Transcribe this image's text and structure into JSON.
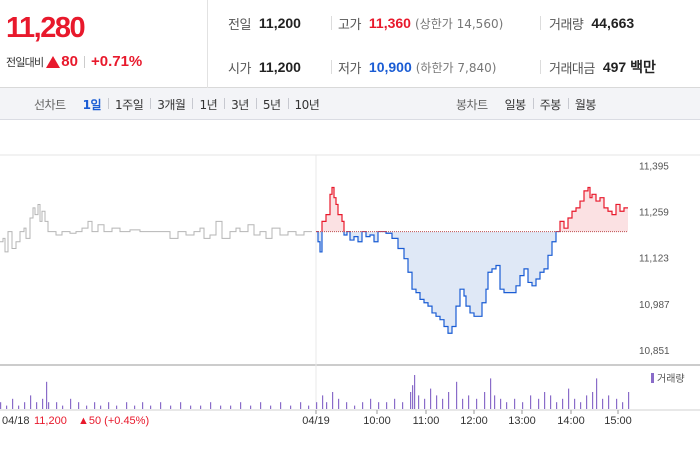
{
  "quote": {
    "price": "11,280",
    "change_label": "전일대비",
    "change_value": "80",
    "change_pct": "+0.71%",
    "prev_close": {
      "label": "전일",
      "value": "11,200"
    },
    "open": {
      "label": "시가",
      "value": "11,200"
    },
    "high": {
      "label": "고가",
      "value": "11,360",
      "sub": "(상한가 14,560)"
    },
    "low": {
      "label": "저가",
      "value": "10,900",
      "sub": "(하한가 7,840)"
    },
    "volume": {
      "label": "거래량",
      "value": "44,663"
    },
    "amount": {
      "label": "거래대금",
      "value": "497 백만"
    }
  },
  "tabs": {
    "line_head": "선차트",
    "line_tabs": [
      "1일",
      "1주일",
      "3개월",
      "1년",
      "3년",
      "5년",
      "10년"
    ],
    "active_line_tab": "1일",
    "candle_head": "봉차트",
    "candle_tabs": [
      "일봉",
      "주봉",
      "월봉"
    ]
  },
  "chart_data": {
    "type": "line",
    "baseline": 11200,
    "ylim": [
      10830,
      11420
    ],
    "y_ticks": [
      "11,395",
      "11,259",
      "11,123",
      "10,987",
      "10,851"
    ],
    "x_ticks": [
      "04/19",
      "10:00",
      "11:00",
      "12:00",
      "13:00",
      "14:00",
      "15:00"
    ],
    "prev_day_label": "04/18",
    "prev_day_price": "11,200",
    "prev_day_change": "▲50 (+0.45%)",
    "legend": "거래량",
    "prev_day_series": [
      [
        0,
        11170
      ],
      [
        3,
        11180
      ],
      [
        5,
        11140
      ],
      [
        8,
        11200
      ],
      [
        12,
        11150
      ],
      [
        16,
        11170
      ],
      [
        20,
        11200
      ],
      [
        24,
        11210
      ],
      [
        26,
        11180
      ],
      [
        30,
        11240
      ],
      [
        33,
        11270
      ],
      [
        35,
        11250
      ],
      [
        38,
        11280
      ],
      [
        40,
        11230
      ],
      [
        42,
        11260
      ],
      [
        45,
        11230
      ],
      [
        48,
        11200
      ],
      [
        52,
        11200
      ],
      [
        56,
        11190
      ],
      [
        62,
        11200
      ],
      [
        70,
        11195
      ],
      [
        76,
        11200
      ],
      [
        82,
        11210
      ],
      [
        88,
        11230
      ],
      [
        92,
        11200
      ],
      [
        98,
        11220
      ],
      [
        104,
        11200
      ],
      [
        112,
        11210
      ],
      [
        120,
        11200
      ],
      [
        130,
        11205
      ],
      [
        140,
        11200
      ],
      [
        150,
        11200
      ],
      [
        160,
        11200
      ],
      [
        170,
        11180
      ],
      [
        178,
        11200
      ],
      [
        186,
        11190
      ],
      [
        194,
        11200
      ],
      [
        200,
        11210
      ],
      [
        204,
        11180
      ],
      [
        210,
        11190
      ],
      [
        216,
        11230
      ],
      [
        222,
        11180
      ],
      [
        230,
        11200
      ],
      [
        236,
        11210
      ],
      [
        240,
        11200
      ],
      [
        248,
        11220
      ],
      [
        254,
        11190
      ],
      [
        260,
        11200
      ],
      [
        266,
        11180
      ],
      [
        272,
        11210
      ],
      [
        280,
        11190
      ],
      [
        288,
        11200
      ],
      [
        296,
        11190
      ],
      [
        304,
        11200
      ],
      [
        312,
        11200
      ]
    ],
    "today_series": [
      [
        0,
        11200
      ],
      [
        2,
        11170
      ],
      [
        4,
        11140
      ],
      [
        6,
        11230
      ],
      [
        10,
        11250
      ],
      [
        14,
        11310
      ],
      [
        16,
        11330
      ],
      [
        18,
        11300
      ],
      [
        20,
        11280
      ],
      [
        22,
        11250
      ],
      [
        26,
        11230
      ],
      [
        28,
        11190
      ],
      [
        31,
        11200
      ],
      [
        34,
        11175
      ],
      [
        38,
        11185
      ],
      [
        42,
        11170
      ],
      [
        46,
        11200
      ],
      [
        50,
        11185
      ],
      [
        54,
        11190
      ],
      [
        58,
        11170
      ],
      [
        62,
        11200
      ],
      [
        70,
        11195
      ],
      [
        76,
        11180
      ],
      [
        82,
        11150
      ],
      [
        88,
        11120
      ],
      [
        92,
        11080
      ],
      [
        96,
        11030
      ],
      [
        100,
        11020
      ],
      [
        104,
        11000
      ],
      [
        108,
        10990
      ],
      [
        112,
        10980
      ],
      [
        116,
        10960
      ],
      [
        120,
        10950
      ],
      [
        124,
        10940
      ],
      [
        128,
        10920
      ],
      [
        132,
        10900
      ],
      [
        136,
        10920
      ],
      [
        140,
        10980
      ],
      [
        144,
        11030
      ],
      [
        148,
        11010
      ],
      [
        150,
        10980
      ],
      [
        154,
        10960
      ],
      [
        158,
        10950
      ],
      [
        162,
        10950
      ],
      [
        166,
        10990
      ],
      [
        170,
        11030
      ],
      [
        172,
        11080
      ],
      [
        176,
        11090
      ],
      [
        180,
        11100
      ],
      [
        184,
        11030
      ],
      [
        188,
        11020
      ],
      [
        192,
        11020
      ],
      [
        196,
        11020
      ],
      [
        200,
        11040
      ],
      [
        204,
        11070
      ],
      [
        208,
        11090
      ],
      [
        212,
        11050
      ],
      [
        216,
        11040
      ],
      [
        220,
        11060
      ],
      [
        224,
        11080
      ],
      [
        228,
        11090
      ],
      [
        232,
        11130
      ],
      [
        236,
        11170
      ],
      [
        240,
        11200
      ],
      [
        244,
        11230
      ],
      [
        248,
        11210
      ],
      [
        252,
        11240
      ],
      [
        256,
        11260
      ],
      [
        260,
        11270
      ],
      [
        264,
        11290
      ],
      [
        268,
        11320
      ],
      [
        272,
        11330
      ],
      [
        274,
        11300
      ],
      [
        276,
        11310
      ],
      [
        280,
        11290
      ],
      [
        284,
        11300
      ],
      [
        288,
        11270
      ],
      [
        292,
        11260
      ],
      [
        296,
        11250
      ],
      [
        300,
        11280
      ],
      [
        304,
        11260
      ],
      [
        308,
        11270
      ],
      [
        312,
        11270
      ]
    ],
    "volume_prev": [
      [
        0,
        2
      ],
      [
        6,
        1
      ],
      [
        12,
        3
      ],
      [
        18,
        1
      ],
      [
        24,
        2
      ],
      [
        30,
        4
      ],
      [
        36,
        2
      ],
      [
        42,
        3
      ],
      [
        46,
        8
      ],
      [
        48,
        2
      ],
      [
        56,
        2
      ],
      [
        62,
        1
      ],
      [
        70,
        3
      ],
      [
        78,
        2
      ],
      [
        86,
        1
      ],
      [
        94,
        2
      ],
      [
        100,
        1
      ],
      [
        108,
        2
      ],
      [
        116,
        1
      ],
      [
        126,
        2
      ],
      [
        134,
        1
      ],
      [
        142,
        2
      ],
      [
        150,
        1
      ],
      [
        160,
        2
      ],
      [
        170,
        1
      ],
      [
        180,
        2
      ],
      [
        190,
        1
      ],
      [
        200,
        1
      ],
      [
        210,
        2
      ],
      [
        220,
        1
      ],
      [
        230,
        1
      ],
      [
        240,
        2
      ],
      [
        250,
        1
      ],
      [
        260,
        2
      ],
      [
        270,
        1
      ],
      [
        280,
        2
      ],
      [
        290,
        1
      ],
      [
        300,
        2
      ],
      [
        308,
        1
      ]
    ],
    "volume_today": [
      [
        0,
        2
      ],
      [
        6,
        4
      ],
      [
        10,
        2
      ],
      [
        16,
        5
      ],
      [
        22,
        3
      ],
      [
        30,
        2
      ],
      [
        38,
        1
      ],
      [
        46,
        2
      ],
      [
        54,
        3
      ],
      [
        62,
        2
      ],
      [
        70,
        2
      ],
      [
        78,
        3
      ],
      [
        86,
        2
      ],
      [
        94,
        5
      ],
      [
        96,
        7
      ],
      [
        98,
        10
      ],
      [
        102,
        4
      ],
      [
        108,
        3
      ],
      [
        114,
        6
      ],
      [
        120,
        4
      ],
      [
        126,
        3
      ],
      [
        132,
        5
      ],
      [
        140,
        8
      ],
      [
        146,
        3
      ],
      [
        152,
        4
      ],
      [
        160,
        3
      ],
      [
        168,
        5
      ],
      [
        174,
        9
      ],
      [
        178,
        4
      ],
      [
        184,
        3
      ],
      [
        190,
        2
      ],
      [
        198,
        3
      ],
      [
        206,
        2
      ],
      [
        214,
        4
      ],
      [
        222,
        3
      ],
      [
        228,
        5
      ],
      [
        234,
        4
      ],
      [
        240,
        2
      ],
      [
        246,
        3
      ],
      [
        252,
        6
      ],
      [
        258,
        3
      ],
      [
        264,
        2
      ],
      [
        270,
        4
      ],
      [
        276,
        5
      ],
      [
        280,
        9
      ],
      [
        286,
        3
      ],
      [
        292,
        4
      ],
      [
        300,
        3
      ],
      [
        306,
        2
      ],
      [
        312,
        5
      ]
    ]
  },
  "colors": {
    "up": "#e8192c",
    "down": "#1a5cd4",
    "prev_line": "#b5b5b5",
    "volume": "#8a6cc9"
  }
}
